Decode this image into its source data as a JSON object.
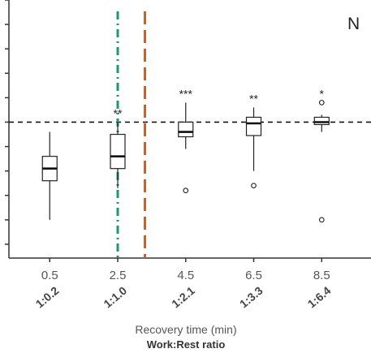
{
  "chart_data": {
    "type": "box",
    "panel_label": "N",
    "xlabel": "Recovery time (min)",
    "xlabel_secondary": "Work:Rest ratio",
    "ylabel": "",
    "y_tick_labels_visible": false,
    "ylim": [
      0,
      10
    ],
    "y_ticks": [
      0,
      1,
      2,
      3,
      4,
      5,
      6,
      7,
      8,
      9,
      10
    ],
    "reference_line": {
      "y": 5.0,
      "style": "dashed",
      "color": "#000000"
    },
    "vertical_lines": [
      {
        "x_value": 2.5,
        "style": "dash-dot",
        "color": "#1a9a6c"
      },
      {
        "x_value": 3.3,
        "style": "dashed",
        "color": "#c9622a"
      }
    ],
    "categories": [
      "0.5",
      "2.5",
      "4.5",
      "6.5",
      "8.5"
    ],
    "ratios": [
      "1:0.2",
      "1:1.0",
      "1:2.1",
      "1:3.3",
      "1:6.4"
    ],
    "boxes": [
      {
        "x": 0.5,
        "whisker_low": 1.0,
        "q1": 2.6,
        "median": 3.1,
        "q3": 3.6,
        "whisker_high": 4.6,
        "outliers": [],
        "significance": ""
      },
      {
        "x": 2.5,
        "whisker_low": 2.3,
        "q1": 3.1,
        "median": 3.6,
        "q3": 4.5,
        "whisker_high": 5.0,
        "outliers": [],
        "significance": "**"
      },
      {
        "x": 4.5,
        "whisker_low": 3.9,
        "q1": 4.4,
        "median": 4.6,
        "q3": 5.0,
        "whisker_high": 5.8,
        "outliers": [
          2.2
        ],
        "significance": "***"
      },
      {
        "x": 6.5,
        "whisker_low": 3.0,
        "q1": 4.45,
        "median": 4.95,
        "q3": 5.2,
        "whisker_high": 5.6,
        "outliers": [
          2.4
        ],
        "significance": "**"
      },
      {
        "x": 8.5,
        "whisker_low": 4.6,
        "q1": 4.9,
        "median": 5.0,
        "q3": 5.2,
        "whisker_high": 5.3,
        "outliers": [
          5.8,
          1.0
        ],
        "significance": "*"
      }
    ],
    "grid": false,
    "legend": "none"
  }
}
